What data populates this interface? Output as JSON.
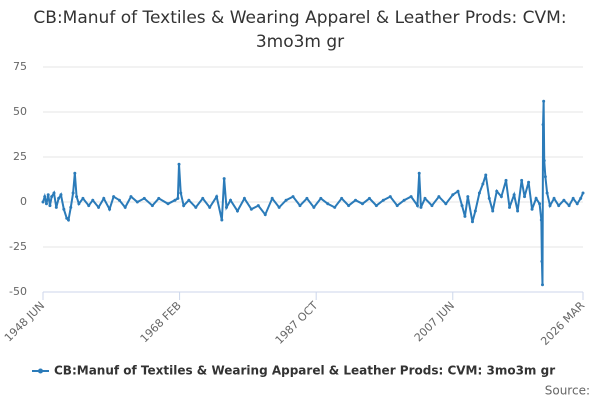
{
  "chart_data": {
    "type": "line",
    "title": "CB:Manuf of Textiles & Wearing Apparel & Leather Prods: CVM: 3mo3m gr",
    "source": "Source:",
    "x": [
      "1948-06",
      "1948-09",
      "1948-12",
      "1949-03",
      "1949-06",
      "1949-09",
      "1950-01",
      "1950-05",
      "1950-09",
      "1951-01",
      "1951-06",
      "1951-11",
      "1952-02",
      "1952-06",
      "1952-10",
      "1953-01",
      "1953-04",
      "1953-08",
      "1954-03",
      "1955-01",
      "1955-08",
      "1956-06",
      "1957-03",
      "1958-01",
      "1958-08",
      "1959-06",
      "1960-04",
      "1961-02",
      "1962-01",
      "1963-01",
      "1964-03",
      "1965-02",
      "1966-06",
      "1967-06",
      "1967-11",
      "1968-01",
      "1968-04",
      "1968-09",
      "1969-06",
      "1970-06",
      "1971-06",
      "1972-06",
      "1973-06",
      "1974-03",
      "1974-07",
      "1974-11",
      "1975-06",
      "1976-06",
      "1977-06",
      "1978-06",
      "1979-06",
      "1980-06",
      "1981-06",
      "1982-06",
      "1983-06",
      "1984-06",
      "1985-06",
      "1986-06",
      "1987-06",
      "1988-06",
      "1989-06",
      "1990-06",
      "1991-06",
      "1992-06",
      "1993-06",
      "1994-06",
      "1995-06",
      "1996-06",
      "1997-06",
      "1998-06",
      "1999-06",
      "2000-06",
      "2001-06",
      "2002-05",
      "2002-08",
      "2002-11",
      "2003-06",
      "2004-06",
      "2005-06",
      "2006-06",
      "2007-06",
      "2008-03",
      "2008-10",
      "2009-03",
      "2009-08",
      "2010-04",
      "2010-09",
      "2011-04",
      "2011-10",
      "2012-03",
      "2012-09",
      "2013-03",
      "2013-10",
      "2014-06",
      "2015-02",
      "2015-08",
      "2016-04",
      "2016-10",
      "2017-05",
      "2017-10",
      "2018-05",
      "2018-11",
      "2019-06",
      "2019-12",
      "2020-03",
      "2020-04",
      "2020-05",
      "2020-06",
      "2020-07",
      "2020-08",
      "2020-10",
      "2021-01",
      "2021-06",
      "2022-01",
      "2022-09",
      "2023-06",
      "2024-03",
      "2024-10",
      "2025-05",
      "2025-11",
      "2026-03"
    ],
    "series": [
      {
        "name": "CB:Manuf of Textiles & Wearing Apparel & Leather Prods: CVM: 3mo3m gr",
        "color": "#2b7bb9",
        "values": [
          0,
          3,
          -1,
          4,
          -2,
          3,
          5,
          -3,
          2,
          4,
          -4,
          -9,
          -10,
          -3,
          5,
          16,
          3,
          -1,
          2,
          -2,
          1,
          -3,
          2,
          -4,
          3,
          1,
          -3,
          3,
          0,
          2,
          -2,
          2,
          -1,
          1,
          2,
          21,
          5,
          -2,
          1,
          -3,
          2,
          -3,
          3,
          -10,
          13,
          -3,
          1,
          -5,
          2,
          -4,
          -2,
          -7,
          2,
          -3,
          1,
          3,
          -2,
          2,
          -3,
          2,
          -1,
          -3,
          2,
          -2,
          1,
          -1,
          2,
          -2,
          1,
          3,
          -2,
          1,
          3,
          -2,
          16,
          -3,
          2,
          -2,
          3,
          -1,
          4,
          6,
          -2,
          -8,
          3,
          -11,
          -5,
          5,
          10,
          15,
          2,
          -5,
          6,
          3,
          12,
          -3,
          4,
          -5,
          12,
          3,
          11,
          -4,
          2,
          -1,
          -10,
          -33,
          -46,
          43,
          56,
          23,
          14,
          5,
          -2,
          2,
          -2,
          1,
          -2,
          2,
          -1,
          2,
          5
        ]
      }
    ],
    "xlim": [
      "1948-06",
      "2026-03"
    ],
    "xticks": [
      {
        "value": "1948-06",
        "label": "1948 JUN"
      },
      {
        "value": "1968-02",
        "label": "1968 FEB"
      },
      {
        "value": "1987-10",
        "label": "1987 OCT"
      },
      {
        "value": "2007-06",
        "label": "2007 JUN"
      },
      {
        "value": "2026-03",
        "label": "2026 MAR"
      }
    ],
    "ylim": [
      -50,
      75
    ],
    "yticks": [
      -50,
      -25,
      0,
      25,
      50,
      75
    ],
    "grid": true
  }
}
